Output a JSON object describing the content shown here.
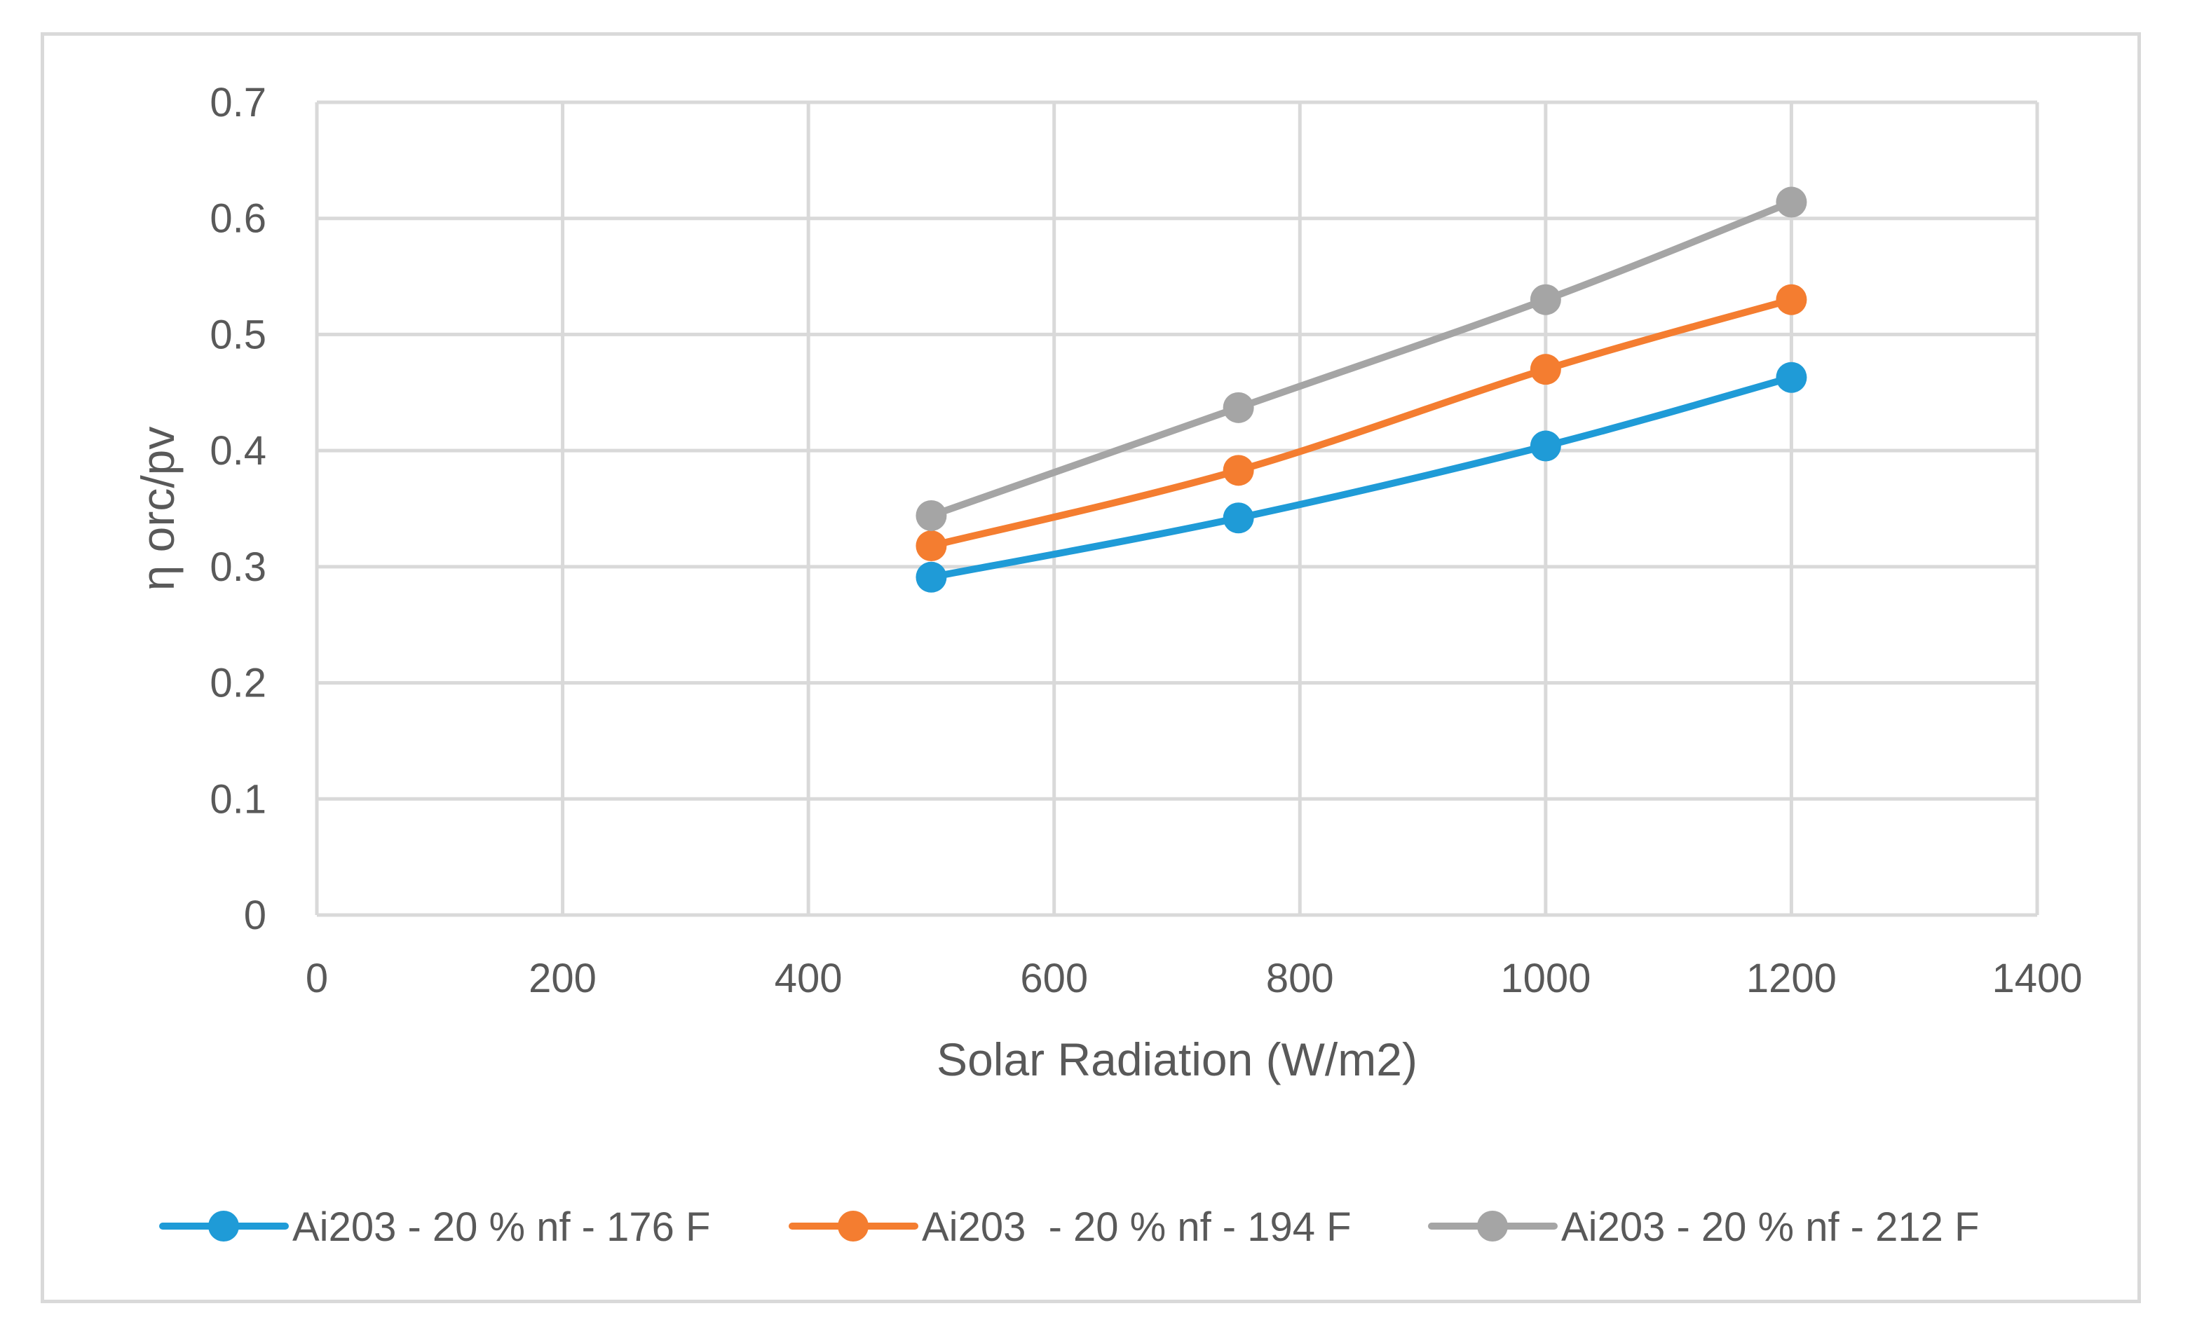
{
  "chart_data": {
    "type": "line",
    "title": "",
    "xlabel": "Solar Radiation (W/m2)",
    "ylabel": "η orc/pv",
    "xlim": [
      0,
      1400
    ],
    "ylim": [
      0,
      0.7
    ],
    "x_ticks": [
      0,
      200,
      400,
      600,
      800,
      1000,
      1200,
      1400
    ],
    "y_ticks": [
      0,
      0.1,
      0.2,
      0.3,
      0.4,
      0.5,
      0.6,
      0.7
    ],
    "x_tick_labels": [
      "0",
      "200",
      "400",
      "600",
      "800",
      "1000",
      "1200",
      "1400"
    ],
    "y_tick_labels": [
      "0",
      "0.1",
      "0.2",
      "0.3",
      "0.4",
      "0.5",
      "0.6",
      "0.7"
    ],
    "grid": true,
    "legend_position": "bottom",
    "x": [
      500,
      750,
      1000,
      1200
    ],
    "series": [
      {
        "name": "Ai203 - 20 % nf - 176 F",
        "color": "#1f9bd7",
        "values": [
          0.291,
          0.342,
          0.404,
          0.463
        ]
      },
      {
        "name": "Ai203  - 20 % nf - 194 F",
        "color": "#f47d30",
        "values": [
          0.318,
          0.383,
          0.47,
          0.53
        ]
      },
      {
        "name": "Ai203 - 20 % nf - 212 F",
        "color": "#a5a5a5",
        "values": [
          0.344,
          0.437,
          0.53,
          0.614
        ]
      }
    ]
  }
}
